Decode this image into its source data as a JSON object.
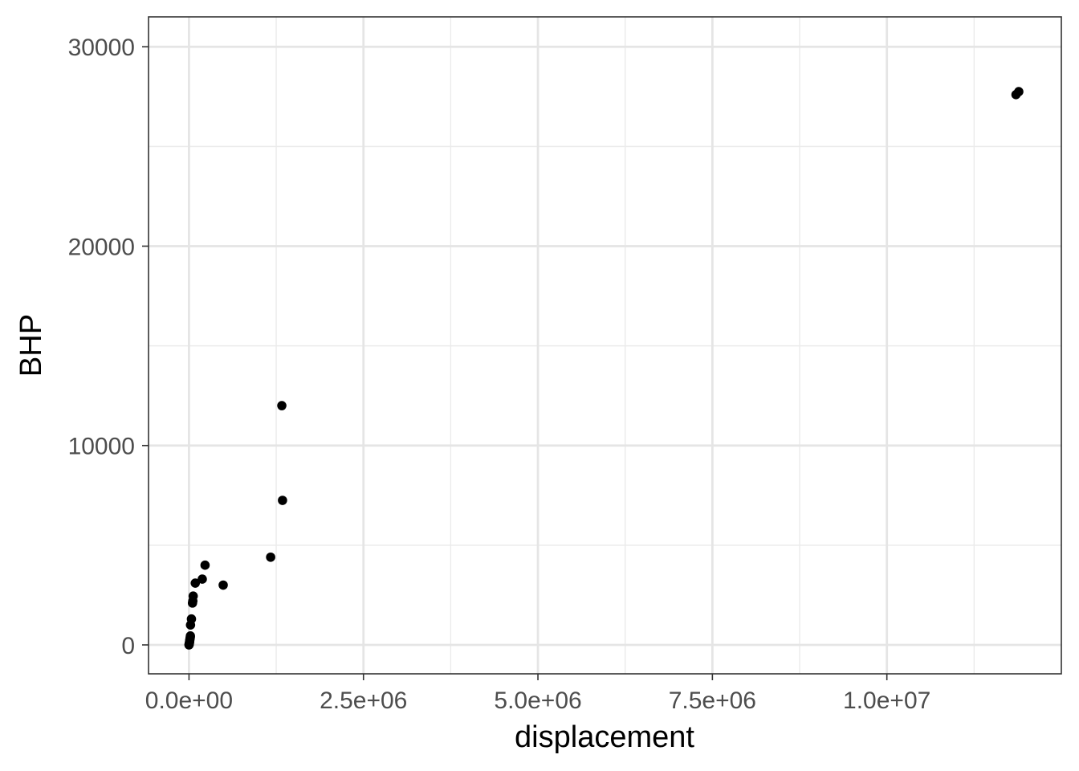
{
  "chart_data": {
    "type": "scatter",
    "title": "",
    "xlabel": "displacement",
    "ylabel": "BHP",
    "xlim": [
      -580000,
      12500000
    ],
    "ylim": [
      -1450,
      31500
    ],
    "x_ticks": [
      0,
      2500000,
      5000000,
      7500000,
      10000000
    ],
    "x_tick_labels": [
      "0.0e+00",
      "2.5e+06",
      "5.0e+06",
      "7.5e+06",
      "1.0e+07"
    ],
    "x_minor_ticks": [
      1250000,
      3750000,
      6250000,
      8750000,
      11250000
    ],
    "y_ticks": [
      0,
      10000,
      20000,
      30000
    ],
    "y_tick_labels": [
      "0",
      "10000",
      "20000",
      "30000"
    ],
    "y_minor_ticks": [
      5000,
      15000,
      25000
    ],
    "grid": true,
    "points": [
      {
        "x": 0,
        "y": 0
      },
      {
        "x": 2000,
        "y": 30
      },
      {
        "x": 4000,
        "y": 60
      },
      {
        "x": 6000,
        "y": 100
      },
      {
        "x": 8000,
        "y": 150
      },
      {
        "x": 10000,
        "y": 200
      },
      {
        "x": 12000,
        "y": 260
      },
      {
        "x": 15000,
        "y": 320
      },
      {
        "x": 18000,
        "y": 380
      },
      {
        "x": 20000,
        "y": 450
      },
      {
        "x": 22000,
        "y": 1000
      },
      {
        "x": 35000,
        "y": 1300
      },
      {
        "x": 50000,
        "y": 2100
      },
      {
        "x": 55000,
        "y": 2200
      },
      {
        "x": 60000,
        "y": 2450
      },
      {
        "x": 90000,
        "y": 3100
      },
      {
        "x": 190000,
        "y": 3300
      },
      {
        "x": 230000,
        "y": 4000
      },
      {
        "x": 490000,
        "y": 3000
      },
      {
        "x": 1170000,
        "y": 4400
      },
      {
        "x": 1330000,
        "y": 12000
      },
      {
        "x": 1340000,
        "y": 7250
      },
      {
        "x": 11850000,
        "y": 27600
      },
      {
        "x": 11890000,
        "y": 27750
      }
    ]
  }
}
